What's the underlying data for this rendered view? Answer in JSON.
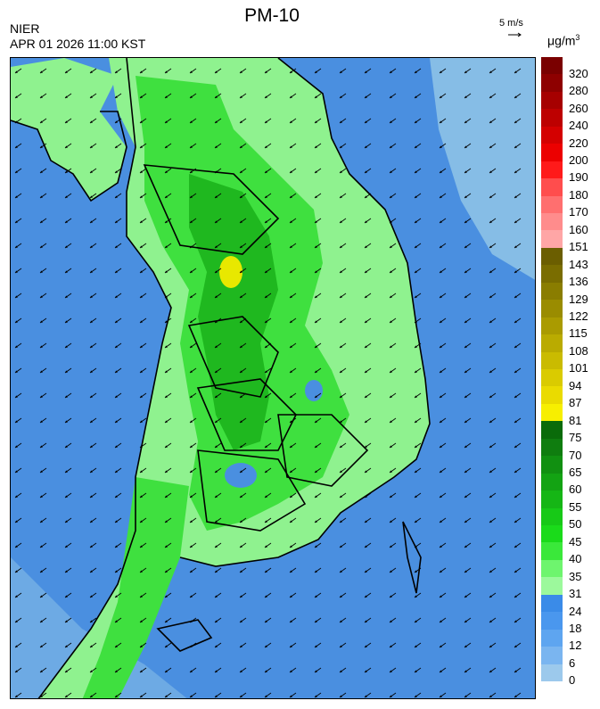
{
  "header": {
    "title": "PM-10",
    "agency": "NIER",
    "datetime": "APR 01 2026 11:00 KST",
    "reference_vector_label": "5 m/s",
    "unit_prefix": "μg/m",
    "unit_exponent": "3"
  },
  "legend": {
    "ticks": [
      "320",
      "280",
      "260",
      "240",
      "220",
      "200",
      "190",
      "180",
      "170",
      "160",
      "151",
      "143",
      "136",
      "129",
      "122",
      "115",
      "108",
      "101",
      "94",
      "87",
      "81",
      "75",
      "70",
      "65",
      "60",
      "55",
      "50",
      "45",
      "40",
      "35",
      "31",
      "24",
      "18",
      "12",
      "6",
      "0"
    ],
    "colors": [
      "#7a0000",
      "#8e0000",
      "#a60000",
      "#bd0000",
      "#d40000",
      "#ec0000",
      "#ff1a1a",
      "#ff4d4d",
      "#ff6f6f",
      "#ff8c8c",
      "#ffa6a6",
      "#6b5e00",
      "#7a6d00",
      "#8a7d00",
      "#9a8c00",
      "#aa9b00",
      "#baab00",
      "#cabb00",
      "#dacb00",
      "#eadb00",
      "#f7ef00",
      "#0a6b0a",
      "#0f7d0f",
      "#119011",
      "#13a313",
      "#15b615",
      "#17c917",
      "#1adb1a",
      "#3ae83a",
      "#6ef56e",
      "#9cf99c",
      "#3a8be8",
      "#4a97ee",
      "#5ea5f0",
      "#7ab5f0",
      "#9cc9ec"
    ]
  },
  "map": {
    "sea_color": "#4a8fe0",
    "sea_far_color": "#86bde6",
    "land_low_color": "#8ff28f",
    "land_mid_color": "#3fe03f",
    "land_high_color": "#1fb81f",
    "hotspot_color": "#e8e800",
    "wind_direction": "northeast-to-southwest"
  }
}
